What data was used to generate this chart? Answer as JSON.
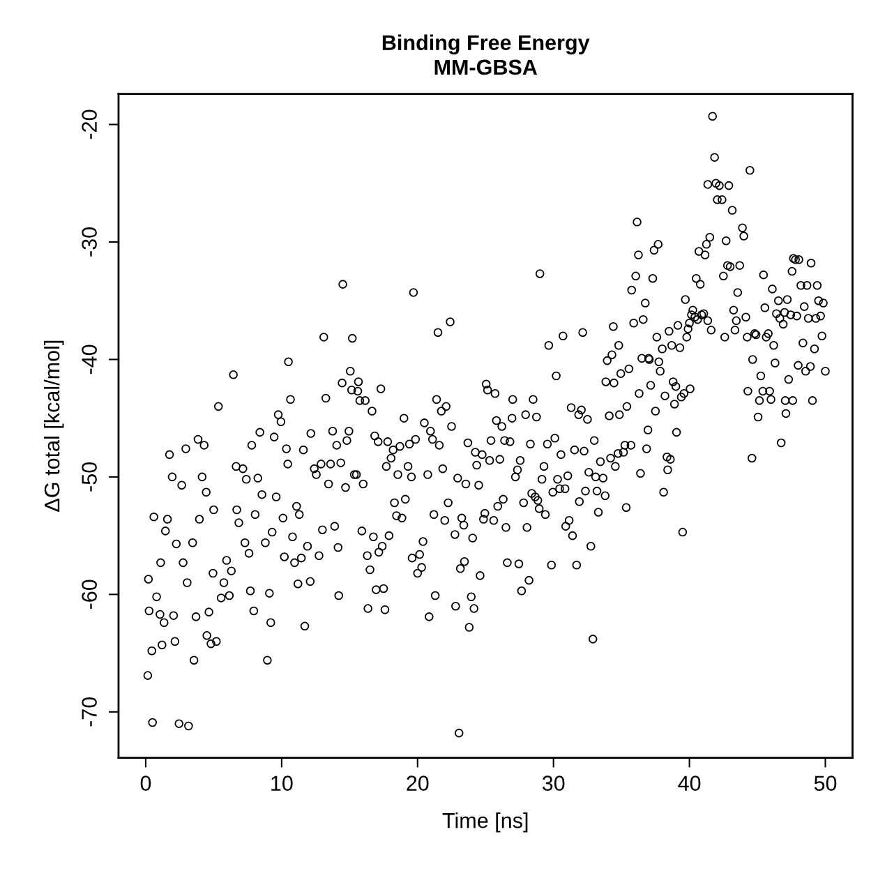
{
  "chart_data": {
    "type": "scatter",
    "title": "Binding Free Energy\nMM-GBSA",
    "xlabel": "Time [ns]",
    "ylabel": "ΔG total [kcal/mol]",
    "xlim": [
      -2,
      52
    ],
    "ylim": [
      -73.9,
      -17.4
    ],
    "xticks": [
      0,
      10,
      20,
      30,
      40,
      50
    ],
    "yticks": [
      -70,
      -60,
      -50,
      -40,
      -30,
      -20
    ],
    "marker": "circle",
    "grid": false,
    "legend": false,
    "series": [
      {
        "color": "#000000",
        "x": [
          0.15,
          0.2,
          0.25,
          0.45,
          0.5,
          0.6,
          0.8,
          1.05,
          1.1,
          1.2,
          1.35,
          1.45,
          1.6,
          1.75,
          1.95,
          2.05,
          2.15,
          2.25,
          2.45,
          2.65,
          2.75,
          2.95,
          3.05,
          3.15,
          3.45,
          3.55,
          3.7,
          3.85,
          3.95,
          4.15,
          4.3,
          4.45,
          4.5,
          4.65,
          4.8,
          4.95,
          5.0,
          5.2,
          5.35,
          5.55,
          5.75,
          5.95,
          6.15,
          6.3,
          6.45,
          6.65,
          6.7,
          6.85,
          7.15,
          7.3,
          7.4,
          7.6,
          7.7,
          7.8,
          7.95,
          8.05,
          8.25,
          8.4,
          8.55,
          8.8,
          8.95,
          9.1,
          9.2,
          9.3,
          9.45,
          9.6,
          9.75,
          9.95,
          10.1,
          10.2,
          10.35,
          10.45,
          10.5,
          10.65,
          10.8,
          10.95,
          11.1,
          11.2,
          11.3,
          11.45,
          11.6,
          11.7,
          11.9,
          12.1,
          12.15,
          12.4,
          12.55,
          12.75,
          12.9,
          13.0,
          13.1,
          13.25,
          13.45,
          13.6,
          13.75,
          13.9,
          14.05,
          14.15,
          14.2,
          14.35,
          14.45,
          14.5,
          14.7,
          14.8,
          14.95,
          15.05,
          15.15,
          15.2,
          15.35,
          15.5,
          15.6,
          15.65,
          15.75,
          15.9,
          16.0,
          16.15,
          16.3,
          16.35,
          16.5,
          16.65,
          16.75,
          16.85,
          16.95,
          17.1,
          17.15,
          17.3,
          17.4,
          17.5,
          17.6,
          17.7,
          17.8,
          17.9,
          18.05,
          18.2,
          18.3,
          18.45,
          18.55,
          18.7,
          18.85,
          19.0,
          19.1,
          19.3,
          19.4,
          19.55,
          19.6,
          19.7,
          19.85,
          20.0,
          20.15,
          20.3,
          20.4,
          20.5,
          20.75,
          20.85,
          20.95,
          21.1,
          21.2,
          21.3,
          21.4,
          21.5,
          21.6,
          21.75,
          21.85,
          22.0,
          22.1,
          22.25,
          22.4,
          22.5,
          22.75,
          22.8,
          22.95,
          23.05,
          23.15,
          23.25,
          23.4,
          23.45,
          23.55,
          23.7,
          23.8,
          23.95,
          24.05,
          24.15,
          24.25,
          24.35,
          24.5,
          24.6,
          24.75,
          24.85,
          24.95,
          25.05,
          25.15,
          25.3,
          25.4,
          25.6,
          25.7,
          25.8,
          25.9,
          26.05,
          26.2,
          26.3,
          26.4,
          26.5,
          26.6,
          26.8,
          26.95,
          27.0,
          27.2,
          27.35,
          27.45,
          27.55,
          27.65,
          27.8,
          27.95,
          28.05,
          28.2,
          28.3,
          28.4,
          28.5,
          28.65,
          28.75,
          28.85,
          28.95,
          29.0,
          29.15,
          29.3,
          29.4,
          29.55,
          29.65,
          29.85,
          29.95,
          30.1,
          30.2,
          30.3,
          30.45,
          30.55,
          30.7,
          30.85,
          30.9,
          31.05,
          31.15,
          31.3,
          31.4,
          31.55,
          31.7,
          31.85,
          31.9,
          32.05,
          32.15,
          32.25,
          32.35,
          32.5,
          32.6,
          32.75,
          32.9,
          33.0,
          33.1,
          33.2,
          33.3,
          33.45,
          33.65,
          33.8,
          33.85,
          33.95,
          34.1,
          34.2,
          34.3,
          34.4,
          34.45,
          34.55,
          34.75,
          34.8,
          34.85,
          34.95,
          35.15,
          35.25,
          35.35,
          35.4,
          35.55,
          35.7,
          35.75,
          35.9,
          36.05,
          36.15,
          36.25,
          36.3,
          36.4,
          36.5,
          36.6,
          36.75,
          36.85,
          36.95,
          37.0,
          37.05,
          37.15,
          37.3,
          37.4,
          37.5,
          37.6,
          37.7,
          37.75,
          37.85,
          38.0,
          38.1,
          38.2,
          38.35,
          38.4,
          38.5,
          38.6,
          38.7,
          38.8,
          38.9,
          39.0,
          39.05,
          39.15,
          39.3,
          39.4,
          39.5,
          39.6,
          39.7,
          39.8,
          39.9,
          40.0,
          40.05,
          40.15,
          40.25,
          40.4,
          40.5,
          40.6,
          40.7,
          40.8,
          40.9,
          41.05,
          41.15,
          41.25,
          41.35,
          41.35,
          41.5,
          41.6,
          41.7,
          41.85,
          41.95,
          42.05,
          42.2,
          42.4,
          42.5,
          42.6,
          42.7,
          42.8,
          42.9,
          43.0,
          43.15,
          43.25,
          43.35,
          43.45,
          43.55,
          43.7,
          43.9,
          44.0,
          44.15,
          44.25,
          44.3,
          44.45,
          44.6,
          44.65,
          44.8,
          44.9,
          45.05,
          45.15,
          45.25,
          45.4,
          45.45,
          45.55,
          45.65,
          45.8,
          45.9,
          46.0,
          46.1,
          46.2,
          46.3,
          46.4,
          46.55,
          46.65,
          46.75,
          46.9,
          47.0,
          47.05,
          47.1,
          47.2,
          47.3,
          47.45,
          47.55,
          47.6,
          47.65,
          47.8,
          47.9,
          48.0,
          48.05,
          48.2,
          48.35,
          48.45,
          48.55,
          48.65,
          48.75,
          48.9,
          48.95,
          49.05,
          49.2,
          49.3,
          49.4,
          49.5,
          49.65,
          49.75,
          49.85,
          50.0
        ],
        "values": [
          -66.9,
          -58.7,
          -61.4,
          -64.8,
          -70.9,
          -53.4,
          -60.2,
          -61.7,
          -57.3,
          -64.3,
          -62.4,
          -54.6,
          -53.6,
          -48.1,
          -50.0,
          -61.8,
          -64.0,
          -55.7,
          -71.0,
          -50.7,
          -57.3,
          -47.6,
          -59.0,
          -71.2,
          -55.6,
          -65.6,
          -61.9,
          -46.8,
          -53.6,
          -50.0,
          -47.3,
          -51.3,
          -63.5,
          -61.5,
          -64.2,
          -58.2,
          -52.8,
          -64.0,
          -44.0,
          -60.3,
          -59.0,
          -57.1,
          -60.1,
          -58.0,
          -41.3,
          -49.1,
          -52.8,
          -53.9,
          -49.3,
          -55.6,
          -50.2,
          -56.5,
          -59.7,
          -47.3,
          -61.4,
          -53.2,
          -50.1,
          -46.2,
          -51.5,
          -55.6,
          -65.6,
          -59.9,
          -62.4,
          -54.7,
          -46.6,
          -51.7,
          -44.7,
          -45.3,
          -53.5,
          -56.8,
          -47.6,
          -48.9,
          -40.2,
          -43.4,
          -55.1,
          -57.3,
          -52.5,
          -59.1,
          -53.2,
          -56.9,
          -47.7,
          -62.7,
          -55.9,
          -58.9,
          -46.3,
          -49.3,
          -49.8,
          -56.7,
          -48.9,
          -54.5,
          -38.1,
          -43.3,
          -50.6,
          -48.9,
          -46.1,
          -54.2,
          -47.3,
          -56.0,
          -60.1,
          -48.8,
          -42.0,
          -33.6,
          -50.9,
          -46.9,
          -46.1,
          -41.0,
          -42.6,
          -38.2,
          -49.8,
          -49.8,
          -42.7,
          -41.9,
          -43.5,
          -54.6,
          -50.6,
          -43.5,
          -56.7,
          -61.2,
          -57.9,
          -44.4,
          -55.1,
          -46.5,
          -59.6,
          -47.0,
          -56.4,
          -42.5,
          -55.9,
          -59.5,
          -61.3,
          -49.1,
          -47.0,
          -55.0,
          -48.4,
          -47.7,
          -52.2,
          -53.3,
          -49.8,
          -47.4,
          -53.5,
          -45.0,
          -51.9,
          -49.1,
          -47.2,
          -50.0,
          -56.9,
          -34.3,
          -46.8,
          -58.2,
          -56.6,
          -57.7,
          -55.5,
          -45.4,
          -49.8,
          -61.9,
          -46.1,
          -46.8,
          -53.2,
          -60.1,
          -43.4,
          -37.7,
          -47.3,
          -44.4,
          -49.3,
          -53.7,
          -44.0,
          -52.2,
          -36.8,
          -45.7,
          -54.9,
          -61.0,
          -50.1,
          -71.8,
          -57.8,
          -53.5,
          -54.1,
          -57.2,
          -50.6,
          -47.1,
          -62.8,
          -60.2,
          -55.2,
          -61.2,
          -47.9,
          -49.0,
          -50.7,
          -58.4,
          -48.1,
          -53.6,
          -53.1,
          -42.1,
          -42.6,
          -48.6,
          -46.9,
          -53.7,
          -42.9,
          -45.2,
          -52.5,
          -48.5,
          -45.7,
          -51.9,
          -46.9,
          -54.3,
          -57.3,
          -47.0,
          -45.0,
          -43.4,
          -50.0,
          -49.4,
          -57.4,
          -48.6,
          -59.7,
          -52.2,
          -44.7,
          -54.3,
          -58.8,
          -47.2,
          -51.4,
          -43.4,
          -51.7,
          -44.9,
          -52.0,
          -52.7,
          -32.7,
          -50.2,
          -49.1,
          -53.2,
          -47.2,
          -38.8,
          -57.5,
          -51.3,
          -46.7,
          -41.4,
          -50.2,
          -51.0,
          -48.1,
          -38.0,
          -51.0,
          -54.2,
          -49.9,
          -53.7,
          -44.1,
          -55.0,
          -47.7,
          -57.5,
          -44.7,
          -52.1,
          -44.3,
          -37.7,
          -47.8,
          -51.2,
          -45.1,
          -49.6,
          -55.9,
          -63.8,
          -46.9,
          -50.0,
          -51.2,
          -53.0,
          -48.7,
          -50.1,
          -51.6,
          -41.9,
          -40.1,
          -44.8,
          -48.4,
          -39.6,
          -37.2,
          -42.0,
          -49.1,
          -48.0,
          -38.8,
          -44.7,
          -41.2,
          -47.9,
          -47.3,
          -52.6,
          -44.0,
          -40.8,
          -47.3,
          -34.1,
          -36.9,
          -32.9,
          -28.3,
          -31.1,
          -42.9,
          -49.7,
          -39.9,
          -36.6,
          -35.2,
          -47.6,
          -46.0,
          -39.9,
          -40.0,
          -42.2,
          -33.1,
          -30.7,
          -44.4,
          -38.1,
          -30.2,
          -40.2,
          -41.0,
          -39.1,
          -51.3,
          -43.1,
          -48.3,
          -49.4,
          -37.6,
          -48.5,
          -38.8,
          -41.9,
          -43.8,
          -42.3,
          -46.2,
          -37.1,
          -39.0,
          -43.2,
          -54.7,
          -42.9,
          -34.9,
          -38.1,
          -37.4,
          -36.9,
          -42.5,
          -36.2,
          -35.8,
          -36.4,
          -33.1,
          -36.6,
          -30.8,
          -33.6,
          -36.2,
          -36.1,
          -31.1,
          -30.2,
          -36.7,
          -25.1,
          -29.6,
          -37.5,
          -19.3,
          -22.8,
          -25.0,
          -26.4,
          -25.2,
          -26.4,
          -32.9,
          -38.1,
          -29.9,
          -32.0,
          -25.2,
          -32.1,
          -27.3,
          -35.8,
          -37.5,
          -36.7,
          -34.3,
          -32.0,
          -28.8,
          -29.5,
          -36.4,
          -38.1,
          -42.7,
          -23.9,
          -48.4,
          -40.0,
          -37.8,
          -37.9,
          -44.9,
          -43.5,
          -41.4,
          -42.7,
          -32.8,
          -35.6,
          -38.1,
          -37.8,
          -42.7,
          -43.4,
          -34.0,
          -38.8,
          -40.3,
          -36.1,
          -35.0,
          -36.5,
          -47.1,
          -37.0,
          -36.0,
          -43.5,
          -44.6,
          -34.9,
          -41.7,
          -36.2,
          -32.5,
          -43.5,
          -31.4,
          -31.5,
          -36.3,
          -40.5,
          -31.5,
          -33.7,
          -38.6,
          -35.5,
          -41.0,
          -33.7,
          -36.5,
          -40.6,
          -31.8,
          -43.5,
          -39.1,
          -36.5,
          -33.7,
          -35.0,
          -36.3,
          -38.0,
          -35.2,
          -41.0
        ]
      }
    ]
  }
}
